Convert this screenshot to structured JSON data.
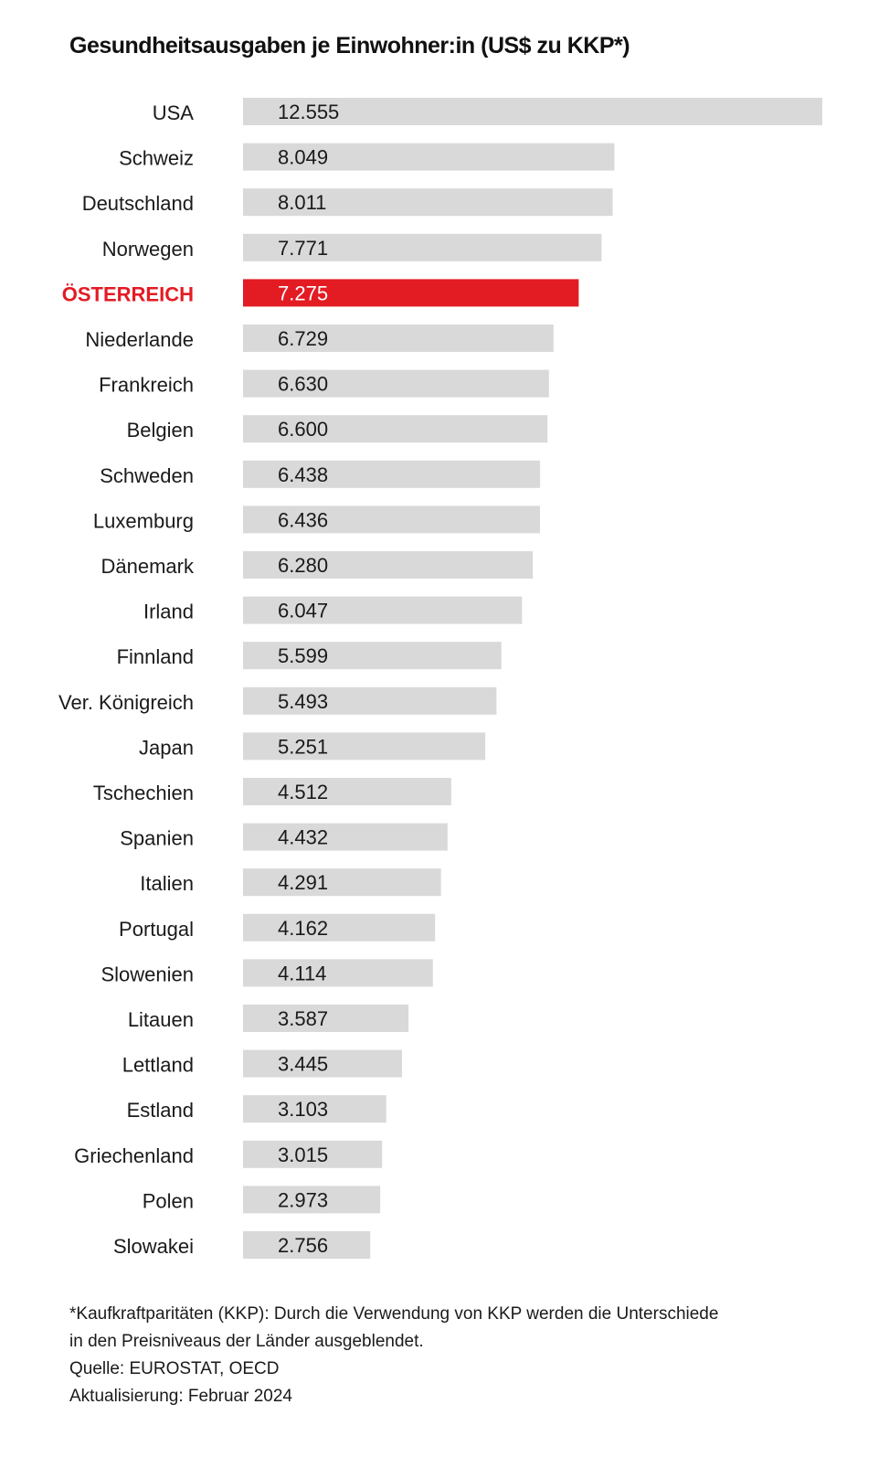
{
  "title": "Gesundheitsausgaben je Einwohner:in (US$ zu KKP*)",
  "chart_data": {
    "type": "bar",
    "orientation": "horizontal",
    "title": "Gesundheitsausgaben je Einwohner:in (US$ zu KKP*)",
    "categories": [
      "USA",
      "Schweiz",
      "Deutschland",
      "Norwegen",
      "ÖSTERREICH",
      "Niederlande",
      "Frankreich",
      "Belgien",
      "Schweden",
      "Luxemburg",
      "Dänemark",
      "Irland",
      "Finnland",
      "Ver. Königreich",
      "Japan",
      "Tschechien",
      "Spanien",
      "Italien",
      "Portugal",
      "Slowenien",
      "Litauen",
      "Lettland",
      "Estland",
      "Griechenland",
      "Polen",
      "Slowakei"
    ],
    "values": [
      12555,
      8049,
      8011,
      7771,
      7275,
      6729,
      6630,
      6600,
      6438,
      6436,
      6280,
      6047,
      5599,
      5493,
      5251,
      4512,
      4432,
      4291,
      4162,
      4114,
      3587,
      3445,
      3103,
      3015,
      2973,
      2756
    ],
    "value_labels": [
      "12.555",
      "8.049",
      "8.011",
      "7.771",
      "7.275",
      "6.729",
      "6.630",
      "6.600",
      "6.438",
      "6.436",
      "6.280",
      "6.047",
      "5.599",
      "5.493",
      "5.251",
      "4.512",
      "4.432",
      "4.291",
      "4.162",
      "4.114",
      "3.587",
      "3.445",
      "3.103",
      "3.015",
      "2.973",
      "2.756"
    ],
    "highlight": "ÖSTERREICH",
    "xlim": [
      0,
      12555
    ],
    "grid": false,
    "colors": {
      "bar": "#d9d9da",
      "highlight": "#e31b23",
      "highlight_label": "#e31b23"
    }
  },
  "footnote": {
    "line1": "*Kaufkraftparitäten (KKP): Durch die Verwendung von KKP werden die Unterschiede",
    "line2": "in den Preisniveaus der Länder ausgeblendet.",
    "source": "Quelle: EUROSTAT, OECD",
    "updated": "Aktualisierung: Februar 2024"
  }
}
